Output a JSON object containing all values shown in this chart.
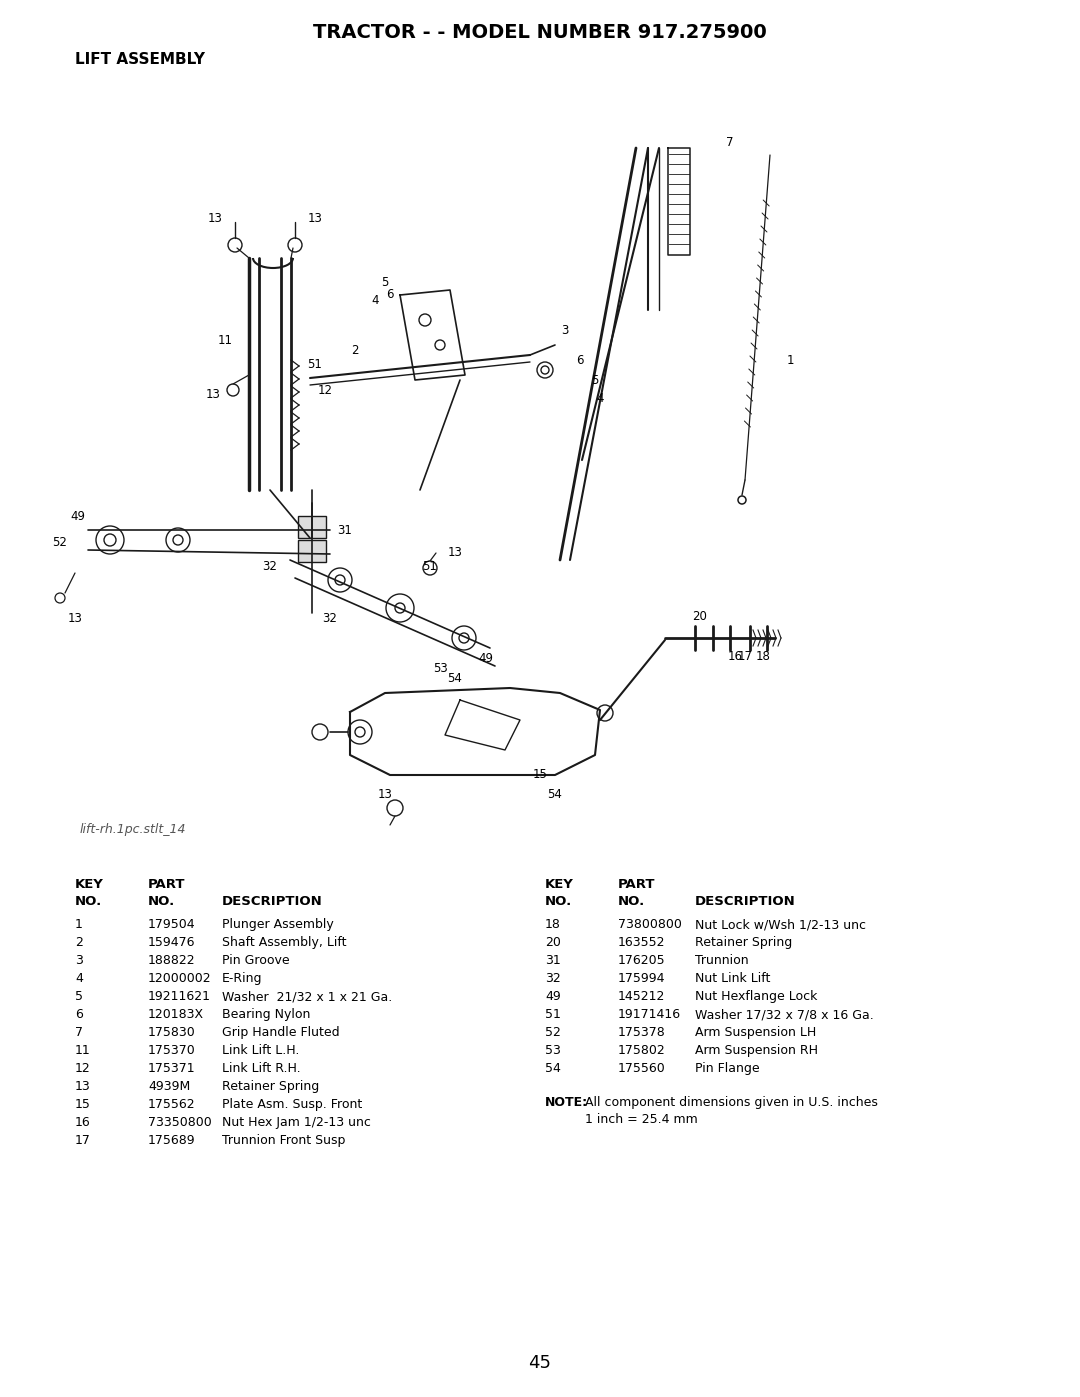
{
  "title": "TRACTOR - - MODEL NUMBER 917.275900",
  "subtitle": "LIFT ASSEMBLY",
  "page_number": "45",
  "watermark": "lift-rh.1pc.stlt_14",
  "bg_color": "#ffffff",
  "parts_left": [
    {
      "key": "1",
      "part": "179504",
      "desc": "Plunger Assembly"
    },
    {
      "key": "2",
      "part": "159476",
      "desc": "Shaft Assembly, Lift"
    },
    {
      "key": "3",
      "part": "188822",
      "desc": "Pin Groove"
    },
    {
      "key": "4",
      "part": "12000002",
      "desc": "E-Ring"
    },
    {
      "key": "5",
      "part": "19211621",
      "desc": "Washer  21/32 x 1 x 21 Ga."
    },
    {
      "key": "6",
      "part": "120183X",
      "desc": "Bearing Nylon"
    },
    {
      "key": "7",
      "part": "175830",
      "desc": "Grip Handle Fluted"
    },
    {
      "key": "11",
      "part": "175370",
      "desc": "Link Lift L.H."
    },
    {
      "key": "12",
      "part": "175371",
      "desc": "Link Lift R.H."
    },
    {
      "key": "13",
      "part": "4939M",
      "desc": "Retainer Spring"
    },
    {
      "key": "15",
      "part": "175562",
      "desc": "Plate Asm. Susp. Front"
    },
    {
      "key": "16",
      "part": "73350800",
      "desc": "Nut Hex Jam 1/2-13 unc"
    },
    {
      "key": "17",
      "part": "175689",
      "desc": "Trunnion Front Susp"
    }
  ],
  "parts_right": [
    {
      "key": "18",
      "part": "73800800",
      "desc": "Nut Lock w/Wsh 1/2-13 unc"
    },
    {
      "key": "20",
      "part": "163552",
      "desc": "Retainer Spring"
    },
    {
      "key": "31",
      "part": "176205",
      "desc": "Trunnion"
    },
    {
      "key": "32",
      "part": "175994",
      "desc": "Nut Link Lift"
    },
    {
      "key": "49",
      "part": "145212",
      "desc": "Nut Hexflange Lock"
    },
    {
      "key": "51",
      "part": "19171416",
      "desc": "Washer 17/32 x 7/8 x 16 Ga."
    },
    {
      "key": "52",
      "part": "175378",
      "desc": "Arm Suspension LH"
    },
    {
      "key": "53",
      "part": "175802",
      "desc": "Arm Suspension RH"
    },
    {
      "key": "54",
      "part": "175560",
      "desc": "Pin Flange"
    }
  ],
  "note_bold": "NOTE:",
  "note_text1": "All component dimensions given in U.S. inches",
  "note_text2": "1 inch = 25.4 mm"
}
